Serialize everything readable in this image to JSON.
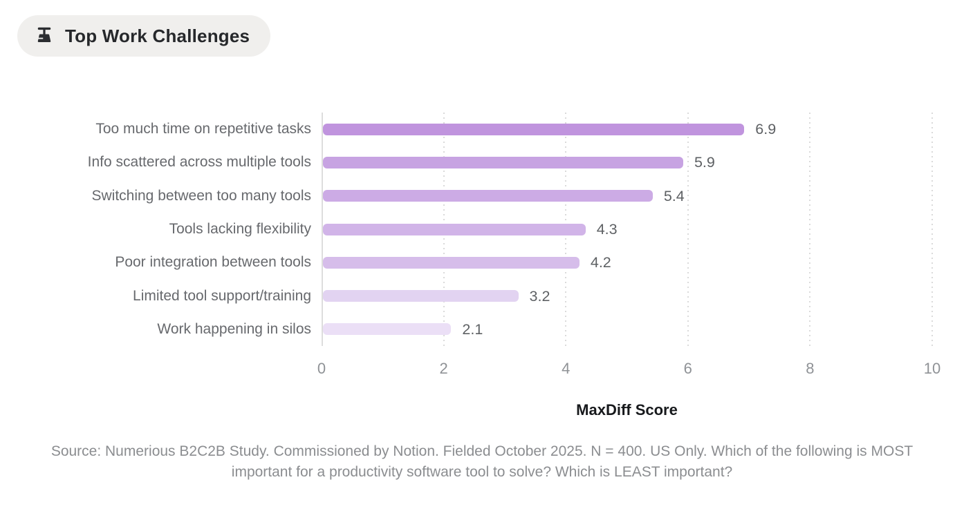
{
  "header": {
    "title": "Top Work Challenges",
    "icon": "broom-icon",
    "background": "#f0efed"
  },
  "chart_data": {
    "type": "bar",
    "orientation": "horizontal",
    "title": "Top Work Challenges",
    "categories": [
      "Too much time on repetitive tasks",
      "Info scattered across multiple tools",
      "Switching between too many tools",
      "Tools lacking flexibility",
      "Poor integration between tools",
      "Limited tool support/training",
      "Work happening in silos"
    ],
    "values": [
      6.9,
      5.9,
      5.4,
      4.3,
      4.2,
      3.2,
      2.1
    ],
    "value_labels": [
      "6.9",
      "5.9",
      "5.4",
      "4.3",
      "4.2",
      "3.2",
      "2.1"
    ],
    "bar_colors": [
      "#c094de",
      "#c7a3e2",
      "#ccabe5",
      "#d1b4e8",
      "#d6bdea",
      "#e2d3f1",
      "#ebdff6"
    ],
    "xlabel": "MaxDiff Score",
    "xlim": [
      0,
      10
    ],
    "xticks": [
      0,
      2,
      4,
      6,
      8,
      10
    ],
    "grid": "vertical-dotted",
    "legend": "none",
    "text_colors": {
      "category_labels": "#67696d",
      "value_labels": "#5e6164",
      "tick_labels": "#8f9296",
      "axis_title": "#17191c"
    }
  },
  "footnote": "Source: Numerious B2C2B Study. Commissioned by Notion. Fielded October 2025. N = 400. US Only. Which of the following is MOST important for a productivity software tool to solve? Which is LEAST important?"
}
